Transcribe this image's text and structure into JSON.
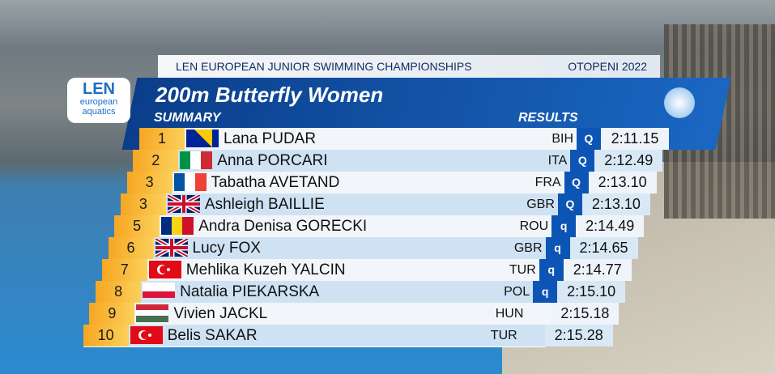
{
  "header": {
    "title": "LEN EUROPEAN JUNIOR SWIMMING CHAMPIONSHIPS",
    "location": "OTOPENI 2022"
  },
  "logo": {
    "name": "LEN",
    "line1": "european",
    "line2": "aquatics"
  },
  "event": {
    "title": "200m Butterfly Women",
    "left_label": "SUMMARY",
    "right_label": "RESULTS"
  },
  "results": [
    {
      "rank": 1,
      "name": "Lana PUDAR",
      "country": "BIH",
      "qualifier": "Q",
      "time": "2:11.15"
    },
    {
      "rank": 2,
      "name": "Anna PORCARI",
      "country": "ITA",
      "qualifier": "Q",
      "time": "2:12.49"
    },
    {
      "rank": 3,
      "name": "Tabatha AVETAND",
      "country": "FRA",
      "qualifier": "Q",
      "time": "2:13.10"
    },
    {
      "rank": 3,
      "name": "Ashleigh BAILLIE",
      "country": "GBR",
      "qualifier": "Q",
      "time": "2:13.10"
    },
    {
      "rank": 5,
      "name": "Andra Denisa GORECKI",
      "country": "ROU",
      "qualifier": "q",
      "time": "2:14.49"
    },
    {
      "rank": 6,
      "name": "Lucy FOX",
      "country": "GBR",
      "qualifier": "q",
      "time": "2:14.65"
    },
    {
      "rank": 7,
      "name": "Mehlika Kuzeh YALCIN",
      "country": "TUR",
      "qualifier": "q",
      "time": "2:14.77"
    },
    {
      "rank": 8,
      "name": "Natalia PIEKARSKA",
      "country": "POL",
      "qualifier": "q",
      "time": "2:15.10"
    },
    {
      "rank": 9,
      "name": "Vivien JACKL",
      "country": "HUN",
      "time": "2:15.18"
    },
    {
      "rank": 10,
      "name": "Belis SAKAR",
      "country": "TUR",
      "time": "2:15.28"
    }
  ]
}
